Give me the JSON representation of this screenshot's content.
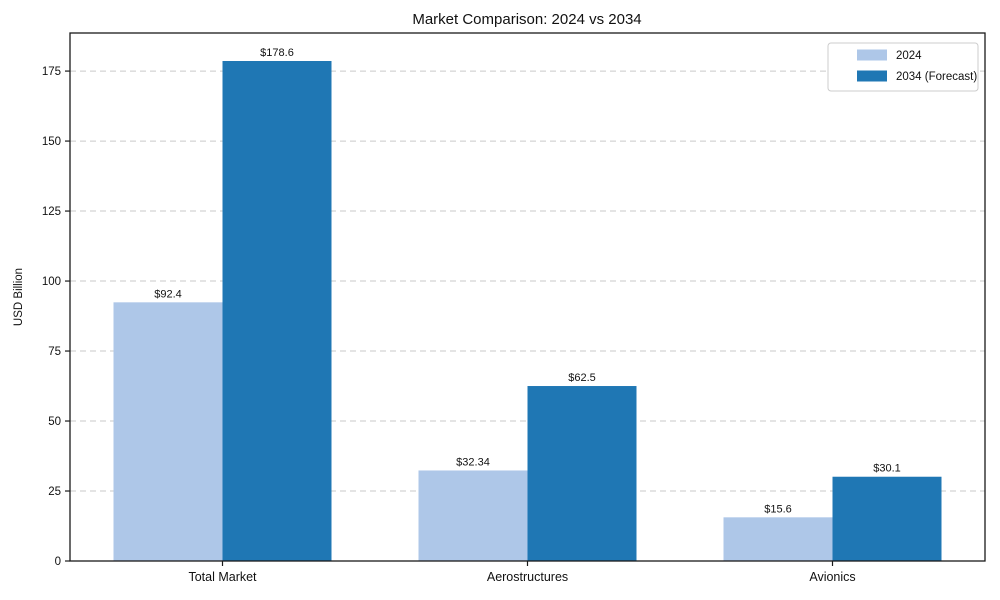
{
  "chart_data": {
    "type": "bar",
    "title": "Market Comparison: 2024 vs 2034",
    "ylabel": "USD Billion",
    "xlabel": "",
    "categories": [
      "Total Market",
      "Aerostructures",
      "Avionics"
    ],
    "series": [
      {
        "name": "2024",
        "color": "#aec7e8",
        "values": [
          92.4,
          32.34,
          15.6
        ],
        "value_labels": [
          "$92.4",
          "$32.34",
          "$15.6"
        ]
      },
      {
        "name": "2034 (Forecast)",
        "color": "#1f77b4",
        "values": [
          178.6,
          62.5,
          30.1
        ],
        "value_labels": [
          "$178.6",
          "$62.5",
          "$30.1"
        ]
      }
    ],
    "yticks": [
      0,
      25,
      50,
      75,
      100,
      125,
      150,
      175
    ],
    "ylim": [
      0,
      188.6
    ],
    "grid": {
      "axis": "y",
      "style": "dashed",
      "color": "#c9c9c9"
    },
    "legend": {
      "position": "upper right",
      "entries": [
        "2024",
        "2034 (Forecast)"
      ]
    },
    "axis_color": "#1a1a1a",
    "text_color": "#111111",
    "background": "#ffffff"
  }
}
